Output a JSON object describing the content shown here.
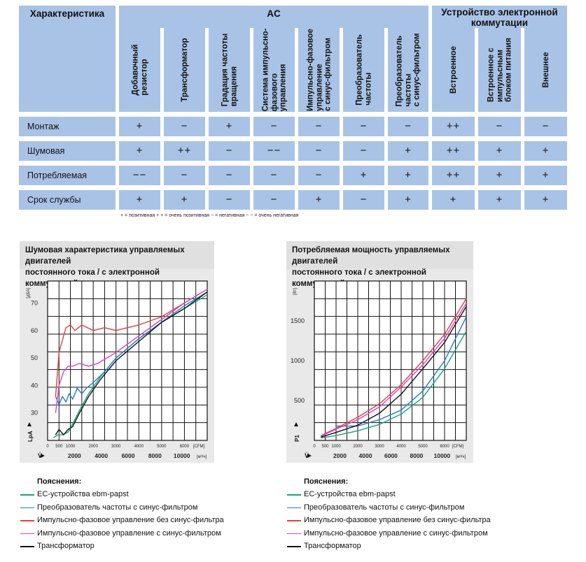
{
  "table": {
    "characteristic_header": "Характеристика",
    "ac_header": "AC",
    "ec_header_line1": "Устройство электронной",
    "ec_header_line2": "коммутации",
    "columns": [
      {
        "line1": "Добавочный",
        "line2": "резистор",
        "line3": ""
      },
      {
        "line1": "Трансформатор",
        "line2": "",
        "line3": ""
      },
      {
        "line1": "Градация частоты",
        "line2": "вращения",
        "line3": ""
      },
      {
        "line1": "Система импульсно-",
        "line2": "фазового",
        "line3": "управления"
      },
      {
        "line1": "Импульсно-фазовое",
        "line2": "управление",
        "line3": "с синус-фильтром"
      },
      {
        "line1": "Преобразователь",
        "line2": "частоты",
        "line3": ""
      },
      {
        "line1": "Преобразователь",
        "line2": "частоты",
        "line3": "с синус-фильтром"
      },
      {
        "line1": "Встроенное",
        "line2": "",
        "line3": ""
      },
      {
        "line1": "Встроенное с",
        "line2": "импульсным",
        "line3": "блоком питания"
      },
      {
        "line1": "Внешнее",
        "line2": "",
        "line3": ""
      }
    ],
    "rows": [
      {
        "label": "Монтаж",
        "values": [
          "+",
          "−",
          "+",
          "−",
          "−",
          "−",
          "−",
          "++",
          "−",
          "−"
        ]
      },
      {
        "label": "Шумовая характеристика",
        "values": [
          "+",
          "++",
          "−",
          "−−",
          "−",
          "−",
          "+",
          "++",
          "+",
          "+"
        ]
      },
      {
        "label": "Потребляемая мощность",
        "values": [
          "−−",
          "−",
          "−",
          "−",
          "−",
          "+",
          "+",
          "++",
          "+",
          "+"
        ]
      },
      {
        "label": "Срок службы",
        "values": [
          "+",
          "+",
          "−",
          "−",
          "+",
          "−",
          "+",
          "+",
          "+",
          "+"
        ]
      }
    ],
    "legend": "+  = позитивная      + +  = очень позитивная      −  = негативная      − −  = очень негативная"
  },
  "chart_data": [
    {
      "type": "line",
      "title_line1": "Шумовая характеристика управляемых двигателей",
      "title_line2": "постоянного тока / с электронной коммутацией",
      "ylabel": "LpA",
      "yunit": "[дБА]",
      "xlabel": "V̇",
      "xunit_cfm": "[CFM]",
      "xunit_m3h": "[м³/ч]",
      "xlim_cfm": [
        0,
        7000
      ],
      "ylim": [
        20,
        78
      ],
      "cfm_ticks": [
        0,
        500,
        1000,
        2000,
        3000,
        4000,
        5000,
        6000
      ],
      "m3h_ticks": [
        2000,
        4000,
        6000,
        8000,
        10000
      ],
      "y_ticks": [
        30,
        40,
        50,
        60,
        70
      ],
      "y_tick_labels": [
        "30",
        "40",
        "50",
        "60",
        "70"
      ],
      "series": [
        {
          "name": "EC-устройства ebm-papst",
          "color": "#1aa37a",
          "x": [
            250,
            450,
            650,
            900,
            1100,
            1400,
            1800,
            2300,
            3000,
            4000,
            5000,
            6000,
            7000
          ],
          "y": [
            21,
            22,
            22,
            23,
            26,
            31,
            37,
            43,
            50,
            57,
            63,
            68,
            73
          ]
        },
        {
          "name": "Преобразователь частоты с синус-фильтром",
          "color": "#1f7fc0",
          "x": [
            350,
            500,
            650,
            800,
            950,
            1100,
            1300,
            1500,
            1700,
            2000,
            2500,
            3000,
            4000,
            5000,
            6000,
            7000
          ],
          "y": [
            36,
            33,
            36,
            34,
            37,
            35,
            39,
            37,
            39,
            41,
            45,
            50,
            57,
            63,
            69,
            74
          ]
        },
        {
          "name": "Импульсно-фазовое управление без синус-фильтра",
          "color": "#e2403c",
          "x": [
            350,
            500,
            800,
            1000,
            1200,
            1500,
            2000,
            2500,
            3000,
            3500,
            4000,
            5000,
            6000,
            7000
          ],
          "y": [
            36,
            52,
            61,
            62,
            60,
            62,
            60,
            61,
            60,
            61,
            62,
            65,
            70,
            75
          ]
        },
        {
          "name": "Импульсно-фазовое управление с синус-фильтром",
          "color": "#e040c0",
          "x": [
            350,
            500,
            700,
            900,
            1100,
            1400,
            1800,
            2200,
            2600,
            3000,
            4000,
            5000,
            6000,
            7000
          ],
          "y": [
            30,
            40,
            45,
            47,
            47,
            48,
            47,
            48,
            50,
            52,
            58,
            64,
            70,
            75
          ]
        },
        {
          "name": "Трансформатор",
          "color": "#111111",
          "x": [
            350,
            500,
            700,
            900,
            1100,
            1400,
            1800,
            2300,
            3000,
            4000,
            5000,
            6000,
            7000
          ],
          "y": [
            22,
            24,
            22,
            24,
            25,
            30,
            36,
            42,
            49,
            56,
            63,
            68,
            74
          ]
        }
      ]
    },
    {
      "type": "line",
      "title_line1": "Потребляемая мощность управляемых двигателей",
      "title_line2": "постоянного тока / с электронной коммутацией",
      "ylabel": "P1",
      "yunit": "[Вт]",
      "xlabel": "V̇",
      "xunit_cfm": "[CFM]",
      "xunit_m3h": "[м³/ч]",
      "xlim_cfm": [
        0,
        7000
      ],
      "ylim": [
        0,
        2000
      ],
      "cfm_ticks": [
        0,
        500,
        1000,
        2000,
        3000,
        4000,
        5000,
        6000
      ],
      "m3h_ticks": [
        2000,
        4000,
        6000,
        8000,
        10000
      ],
      "y_ticks": [
        500,
        1000,
        1500
      ],
      "y_tick_labels": [
        "500",
        "1000",
        "1500"
      ],
      "series": [
        {
          "name": "EC-устройства ebm-papst",
          "color": "#1aa37a",
          "x": [
            300,
            1000,
            2000,
            3000,
            4000,
            5000,
            6000,
            7000
          ],
          "y": [
            30,
            60,
            120,
            200,
            330,
            540,
            900,
            1370
          ]
        },
        {
          "name": "Преобразователь частоты с синус-фильтром",
          "color": "#1f7fc0",
          "x": [
            1000,
            2000,
            3000,
            4000,
            5000,
            6000,
            7000
          ],
          "y": [
            180,
            180,
            260,
            380,
            620,
            1000,
            1550
          ]
        },
        {
          "name": "Импульсно-фазовое управление без синус-фильтра",
          "color": "#e2403c",
          "x": [
            300,
            1000,
            2000,
            3000,
            4000,
            5000,
            6000,
            7000
          ],
          "y": [
            60,
            150,
            290,
            460,
            700,
            1000,
            1330,
            1780
          ]
        },
        {
          "name": "Импульсно-фазовое управление с синус-фильтром",
          "color": "#e040c0",
          "x": [
            300,
            1000,
            2000,
            3000,
            4000,
            5000,
            6000,
            7000
          ],
          "y": [
            50,
            140,
            260,
            420,
            670,
            950,
            1280,
            1720
          ]
        },
        {
          "name": "Трансформатор",
          "color": "#111111",
          "x": [
            300,
            1000,
            2000,
            3000,
            4000,
            5000,
            6000,
            7000
          ],
          "y": [
            40,
            100,
            190,
            340,
            580,
            900,
            1230,
            1680
          ]
        }
      ]
    }
  ],
  "legend_section": {
    "title": "Пояснения:"
  },
  "colors": {
    "table_blue": "#a9c3e6",
    "chart_bg": "#e9e9e9",
    "plot_bg": "#ffffff"
  }
}
